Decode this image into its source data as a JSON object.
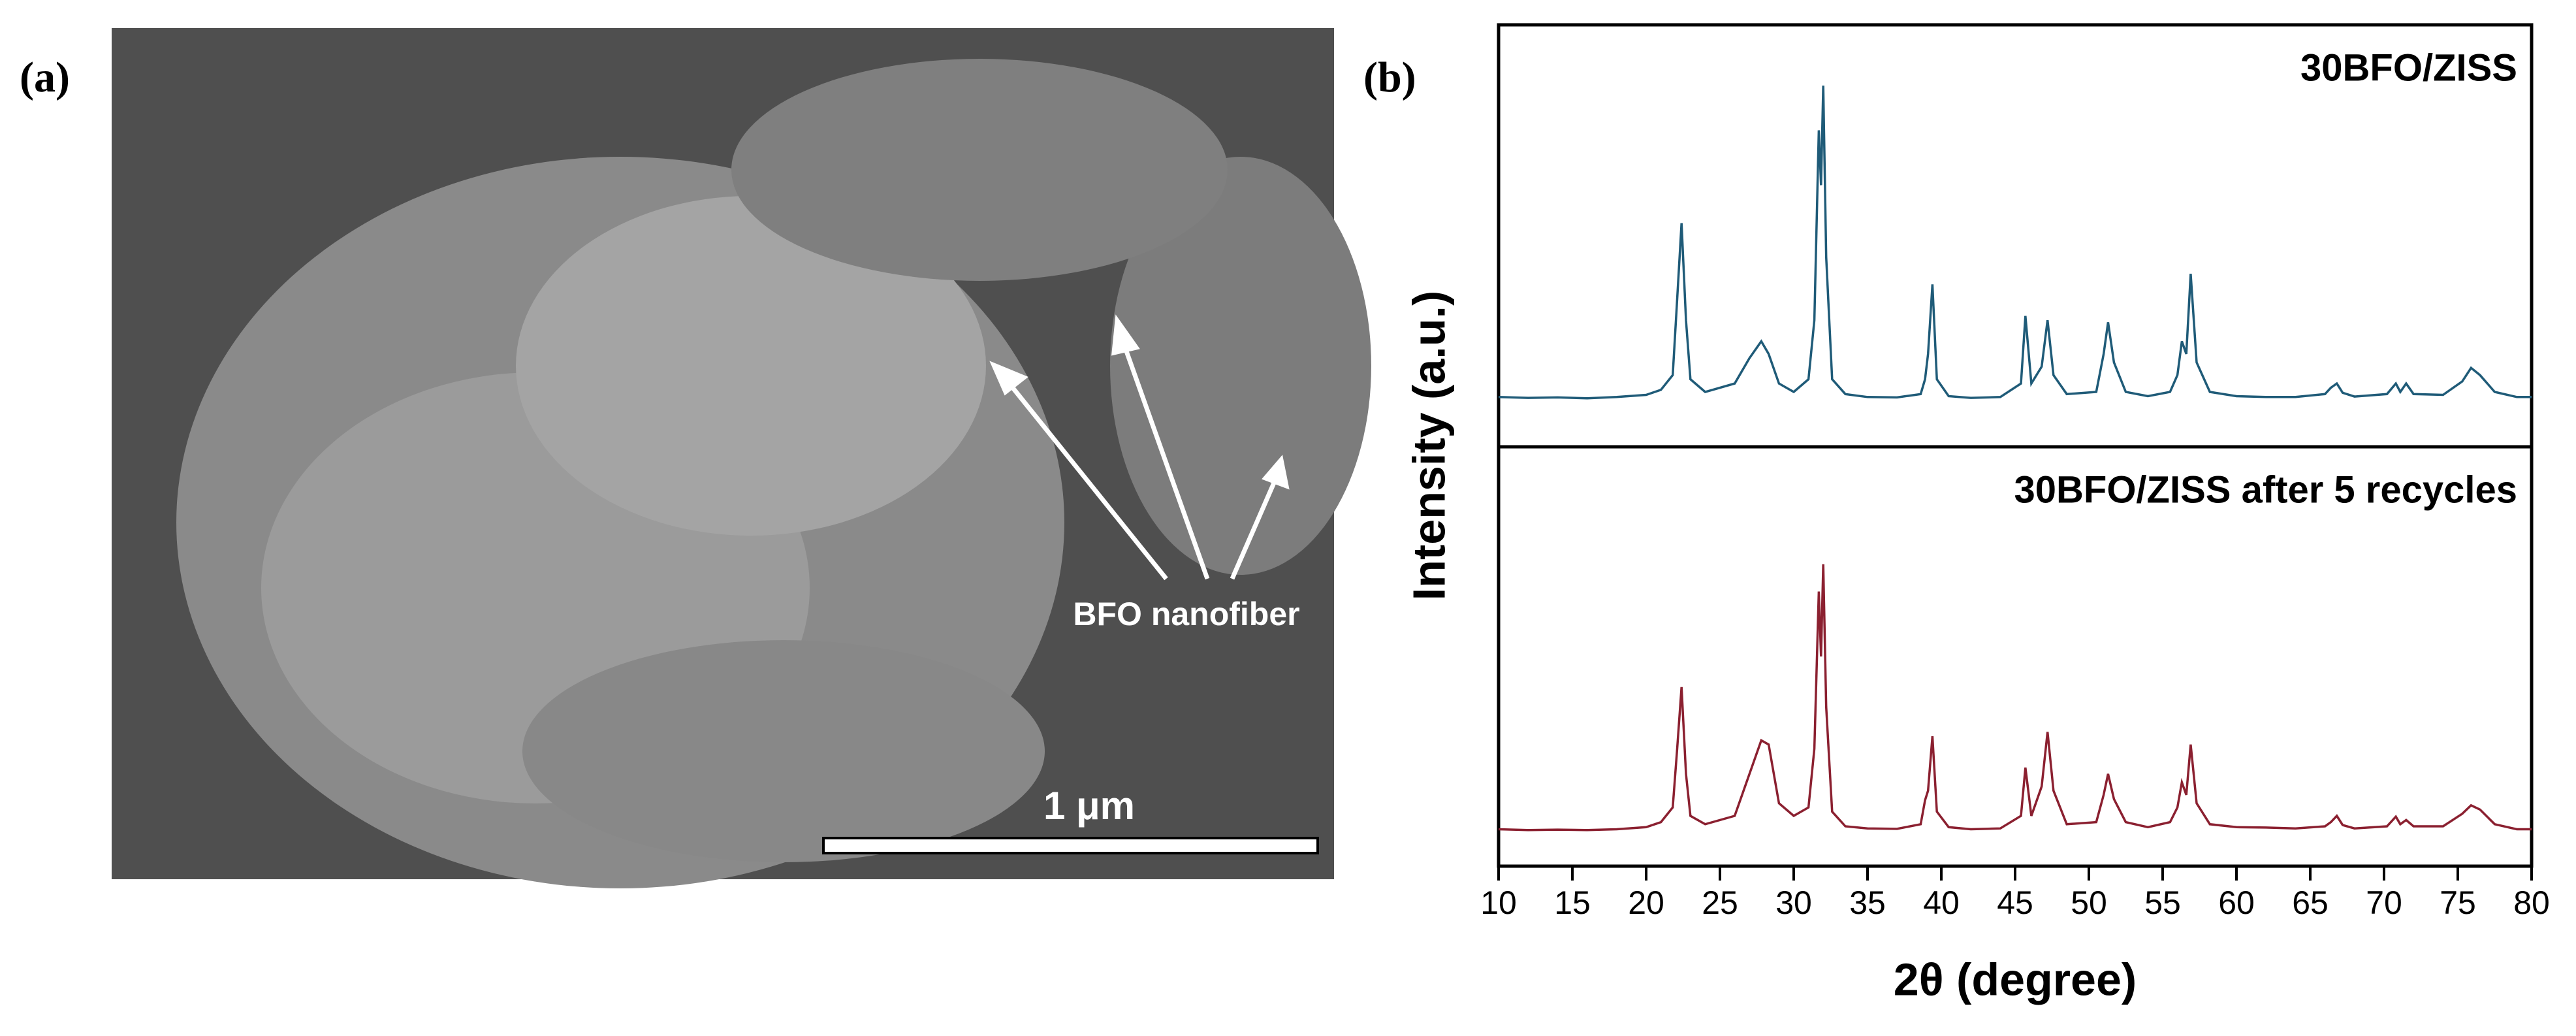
{
  "sem_image": {
    "label": "(a)",
    "annotation": "BFO nanofiber",
    "scale_bar": "1 μm"
  },
  "chart_data": [
    {
      "type": "line",
      "panel_label": "(b)",
      "title": "30BFO/ZISS",
      "ylabel": "Intensity (a.u.)",
      "x": [
        10,
        12,
        14,
        16,
        18,
        20,
        21,
        21.8,
        22.1,
        22.4,
        22.7,
        23,
        24,
        26,
        27,
        27.8,
        28.3,
        29,
        30,
        31,
        31.4,
        31.7,
        31.85,
        32.0,
        32.2,
        32.6,
        33.5,
        35,
        37,
        38.6,
        38.9,
        39.1,
        39.4,
        39.7,
        40.5,
        42,
        44,
        45.4,
        45.7,
        46.1,
        46.8,
        47.2,
        47.6,
        48.5,
        50.5,
        51.0,
        51.3,
        51.7,
        52.5,
        54,
        55.5,
        56.0,
        56.3,
        56.6,
        56.9,
        57.3,
        58.2,
        60,
        62,
        64,
        66,
        66.4,
        66.8,
        67.2,
        68,
        70.2,
        70.8,
        71.1,
        71.5,
        72,
        74,
        75.3,
        75.9,
        76.5,
        77.5,
        79,
        80
      ],
      "xlim": [
        10,
        80
      ],
      "ylim": [
        0,
        100
      ],
      "series": [
        {
          "color": "#1f5b78",
          "values": [
            11.8,
            11.6,
            11.7,
            11.5,
            11.8,
            12.3,
            13.5,
            17,
            35,
            53,
            30,
            16,
            13,
            15,
            21,
            25,
            22,
            15,
            13,
            16,
            30,
            75,
            62,
            85.6,
            45,
            16,
            12.5,
            11.8,
            11.7,
            12.5,
            16,
            22,
            38.5,
            16,
            12,
            11.6,
            11.8,
            15,
            31,
            15,
            19,
            30,
            17,
            12.5,
            13,
            22,
            29.5,
            20,
            13,
            12,
            13,
            17,
            25,
            22,
            41,
            20,
            13,
            12,
            11.8,
            11.8,
            12.5,
            14,
            15,
            12.8,
            11.9,
            12.5,
            15,
            13,
            15,
            12.5,
            12.3,
            15.5,
            18.7,
            17,
            13,
            11.8,
            11.8
          ]
        }
      ]
    },
    {
      "type": "line",
      "title": "30BFO/ZISS after 5 recycles",
      "xlabel": "2θ (degree)",
      "x": [
        10,
        12,
        14,
        16,
        18,
        20,
        21,
        21.8,
        22.1,
        22.4,
        22.7,
        23,
        24,
        26,
        27,
        27.8,
        28.3,
        29,
        30,
        31,
        31.4,
        31.7,
        31.85,
        32.0,
        32.2,
        32.6,
        33.5,
        35,
        37,
        38.6,
        38.9,
        39.1,
        39.4,
        39.7,
        40.5,
        42,
        44,
        45.4,
        45.7,
        46.1,
        46.8,
        47.2,
        47.6,
        48.5,
        50.5,
        51.0,
        51.3,
        51.7,
        52.5,
        54,
        55.5,
        56.0,
        56.3,
        56.6,
        56.9,
        57.3,
        58.2,
        60,
        62,
        64,
        66,
        66.4,
        66.8,
        67.2,
        68,
        70.2,
        70.8,
        71.1,
        71.5,
        72,
        74,
        75.3,
        75.9,
        76.5,
        77.5,
        79,
        80
      ],
      "xlim": [
        10,
        80
      ],
      "ylim": [
        0,
        100
      ],
      "xticks": [
        10,
        15,
        20,
        25,
        30,
        35,
        40,
        45,
        50,
        55,
        60,
        65,
        70,
        75,
        80
      ],
      "series": [
        {
          "color": "#8b2030",
          "values": [
            8.8,
            8.6,
            8.7,
            8.6,
            8.8,
            9.3,
            10.5,
            14,
            28,
            42.7,
            22,
            12,
            10,
            12,
            22,
            30,
            29,
            15,
            12,
            14,
            28,
            65.5,
            50,
            72,
            38,
            13,
            9.5,
            9,
            8.9,
            10,
            15.7,
            18,
            31,
            13,
            9.3,
            8.8,
            9,
            12,
            23.5,
            12,
            19,
            32,
            18,
            10,
            10.5,
            17,
            22,
            16,
            10.5,
            9.3,
            10.5,
            14,
            20,
            17,
            29,
            15,
            10,
            9.3,
            9.2,
            9,
            9.5,
            10.5,
            12,
            9.8,
            9,
            9.5,
            11.8,
            10,
            11,
            9.5,
            9.5,
            12.5,
            14.5,
            13.5,
            10,
            8.8,
            8.8
          ]
        }
      ]
    }
  ]
}
